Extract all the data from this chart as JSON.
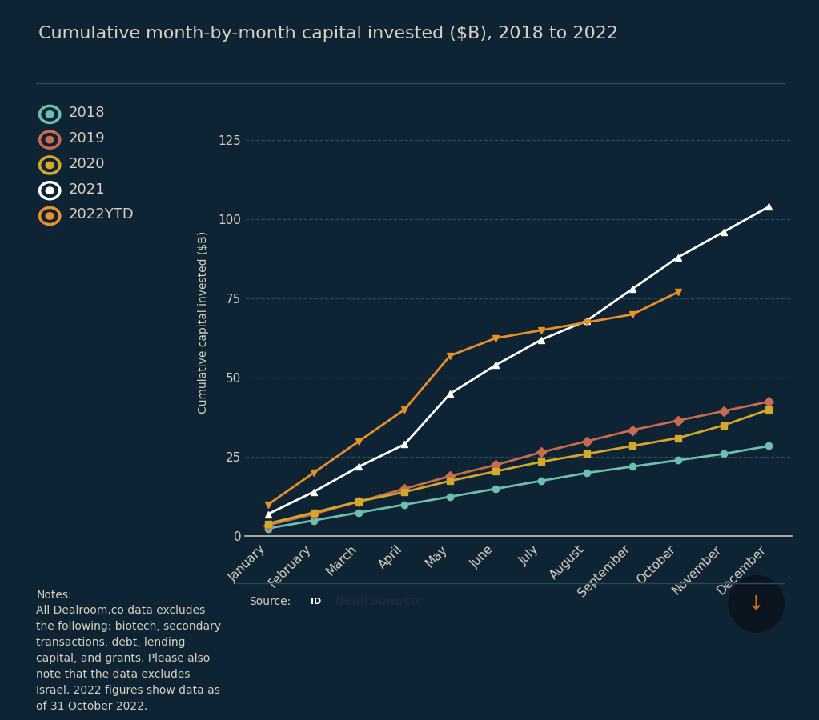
{
  "title": "Cumulative month-by-month capital invested ($B), 2018 to 2022",
  "ylabel": "Cumulative capital invested ($B)",
  "background_color": "#0e2333",
  "plot_bg_color": "#0e2333",
  "grid_color": "#2a4a5a",
  "text_color": "#d8d0c0",
  "months": [
    "January",
    "February",
    "March",
    "April",
    "May",
    "June",
    "July",
    "August",
    "September",
    "October",
    "November",
    "December"
  ],
  "series": [
    {
      "label": "2018",
      "color": "#6dbfb0",
      "marker": "o",
      "data": [
        2.5,
        5.0,
        7.5,
        10.0,
        12.5,
        15.0,
        17.5,
        20.0,
        22.0,
        24.0,
        26.0,
        28.5
      ]
    },
    {
      "label": "2019",
      "color": "#c96b50",
      "marker": "D",
      "data": [
        3.5,
        7.0,
        11.0,
        15.0,
        19.0,
        22.5,
        26.5,
        30.0,
        33.5,
        36.5,
        39.5,
        42.5
      ]
    },
    {
      "label": "2020",
      "color": "#d4a82a",
      "marker": "s",
      "data": [
        4.0,
        7.5,
        11.0,
        14.0,
        17.5,
        20.5,
        23.5,
        26.0,
        28.5,
        31.0,
        35.0,
        40.0
      ]
    },
    {
      "label": "2021",
      "color": "#ffffff",
      "marker": "^",
      "data": [
        7.0,
        14.0,
        22.0,
        29.0,
        45.0,
        54.0,
        62.0,
        68.0,
        78.0,
        88.0,
        96.0,
        104.0
      ]
    },
    {
      "label": "2022YTD",
      "color": "#e8912a",
      "marker": "v",
      "data": [
        10.0,
        20.0,
        30.0,
        40.0,
        57.0,
        62.5,
        65.0,
        67.5,
        70.0,
        77.0,
        null,
        null
      ]
    }
  ],
  "ylim": [
    0,
    135
  ],
  "yticks": [
    0,
    25,
    50,
    75,
    100,
    125
  ],
  "notes_title": "Notes:",
  "notes_body": "All Dealroom.co data excludes\nthe following: biotech, secondary\ntransactions, debt, lending\ncapital, and grants. Please also\nnote that the data excludes\nIsrael. 2022 figures show data as\nof 31 October 2022.",
  "source_text": "Source:",
  "title_fontsize": 16,
  "legend_fontsize": 13,
  "axis_fontsize": 11,
  "ylabel_fontsize": 10,
  "notes_fontsize": 10
}
